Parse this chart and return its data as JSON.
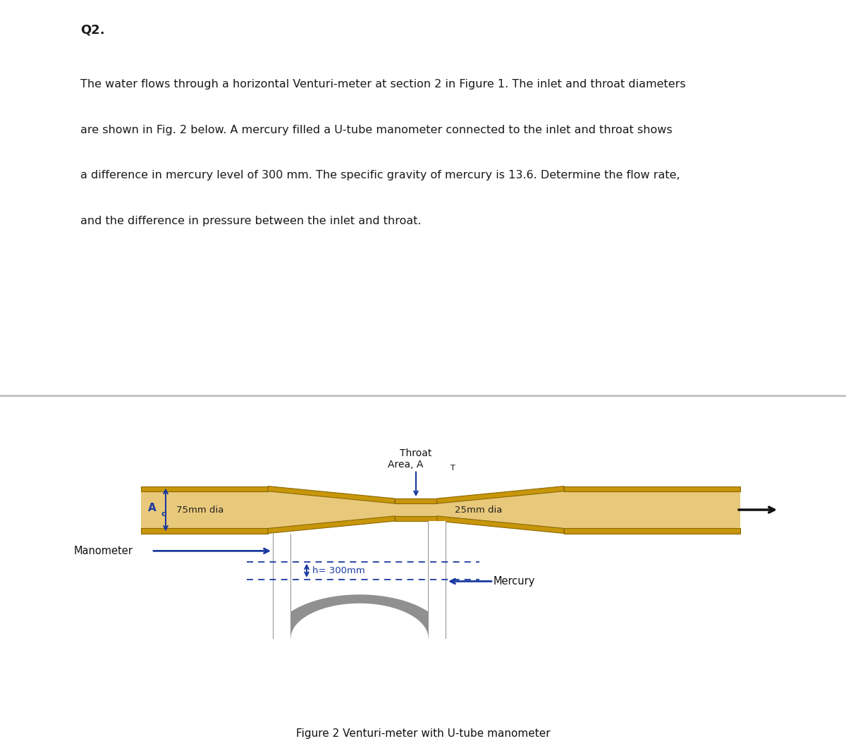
{
  "title": "Q2.",
  "paragraph_lines": [
    "The water flows through a horizontal Venturi-meter at section 2 in Figure 1. The inlet and throat diameters",
    "are shown in Fig. 2 below. A mercury filled a U-tube manometer connected to the inlet and throat shows",
    "a difference in mercury level of 300 mm. The specific gravity of mercury is 13.6. Determine the flow rate,",
    "and the difference in pressure between the inlet and throat."
  ],
  "fig_caption": "Figure 2 Venturi-meter with U-tube manometer",
  "throat_label_line1": "Throat",
  "throat_label_line2": "Area, A",
  "throat_label_sub": "T",
  "inlet_label_main": "A",
  "inlet_label_sub": "o",
  "inlet_dia_label": "75mm dia",
  "throat_dia_label": "25mm dia",
  "h_label": "h= 300mm",
  "manometer_label": "Manometer",
  "mercury_label": "Mercury",
  "pipe_color": "#C8960A",
  "pipe_inner_color": "#E8C87A",
  "utube_color": "#909090",
  "arrow_color": "#1A3A9F",
  "dashed_color": "#1A3A9F",
  "text_color": "#1A1A1A",
  "bg_top": "#FFFFFF",
  "bg_bottom": "#EBEBEB",
  "divider_color": "#C0C0C0",
  "flow_arrow_color": "#111111"
}
